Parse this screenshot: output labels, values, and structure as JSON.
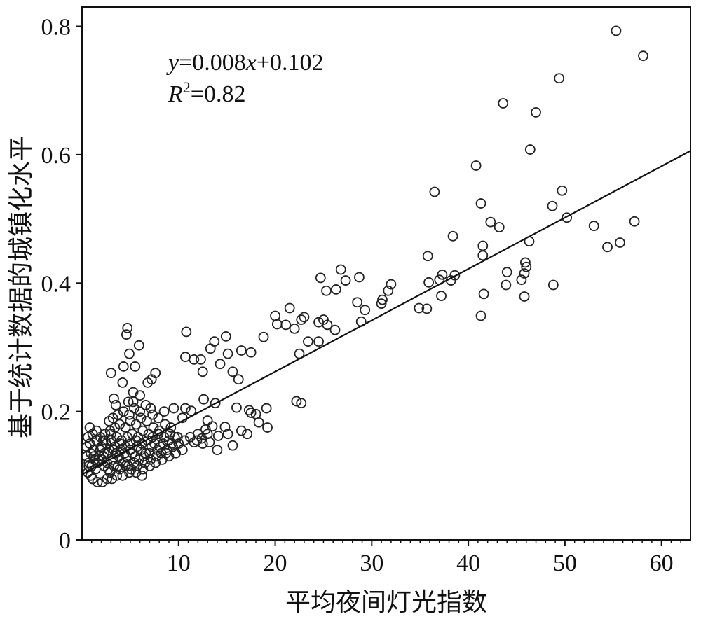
{
  "chart_data": {
    "type": "scatter",
    "xlabel": "平均夜间灯光指数",
    "ylabel": "基于统计数据的城镇化水平",
    "xlim": [
      0,
      63
    ],
    "ylim": [
      0,
      0.83
    ],
    "x_ticks": [
      "10",
      "20",
      "30",
      "40",
      "50",
      "60"
    ],
    "y_ticks": [
      "0",
      "0.2",
      "0.4",
      "0.6",
      "0.8"
    ],
    "grid": false,
    "legend": "none",
    "annotation": {
      "equation_y": "y",
      "equation_rest": "=0.008",
      "equation_x": "x",
      "equation_tail": "+0.102",
      "r2_base": "R",
      "r2_sup": "2",
      "r2_value": "=0.82"
    },
    "trendline": {
      "slope": 0.008,
      "intercept": 0.102,
      "x_range": [
        0,
        63
      ]
    },
    "points": [
      [
        55.3,
        0.793
      ],
      [
        58.1,
        0.754
      ],
      [
        49.4,
        0.719
      ],
      [
        43.6,
        0.68
      ],
      [
        47.0,
        0.666
      ],
      [
        46.4,
        0.608
      ],
      [
        40.8,
        0.583
      ],
      [
        36.5,
        0.542
      ],
      [
        49.7,
        0.544
      ],
      [
        41.3,
        0.524
      ],
      [
        48.7,
        0.52
      ],
      [
        50.2,
        0.502
      ],
      [
        42.3,
        0.495
      ],
      [
        43.2,
        0.487
      ],
      [
        53.0,
        0.489
      ],
      [
        57.2,
        0.496
      ],
      [
        38.4,
        0.473
      ],
      [
        46.3,
        0.465
      ],
      [
        55.7,
        0.463
      ],
      [
        54.4,
        0.456
      ],
      [
        41.5,
        0.458
      ],
      [
        41.5,
        0.443
      ],
      [
        35.8,
        0.442
      ],
      [
        45.9,
        0.432
      ],
      [
        37.3,
        0.413
      ],
      [
        38.6,
        0.412
      ],
      [
        44.0,
        0.417
      ],
      [
        46.0,
        0.425
      ],
      [
        45.8,
        0.415
      ],
      [
        45.5,
        0.405
      ],
      [
        37.0,
        0.405
      ],
      [
        38.2,
        0.404
      ],
      [
        35.9,
        0.401
      ],
      [
        27.3,
        0.404
      ],
      [
        26.8,
        0.421
      ],
      [
        28.7,
        0.409
      ],
      [
        24.7,
        0.408
      ],
      [
        32.0,
        0.398
      ],
      [
        31.7,
        0.388
      ],
      [
        25.3,
        0.388
      ],
      [
        26.3,
        0.39
      ],
      [
        31.1,
        0.374
      ],
      [
        31.0,
        0.368
      ],
      [
        37.2,
        0.38
      ],
      [
        43.9,
        0.397
      ],
      [
        48.8,
        0.397
      ],
      [
        41.6,
        0.383
      ],
      [
        45.8,
        0.379
      ],
      [
        28.5,
        0.37
      ],
      [
        29.3,
        0.358
      ],
      [
        34.9,
        0.361
      ],
      [
        35.7,
        0.36
      ],
      [
        41.3,
        0.349
      ],
      [
        21.5,
        0.361
      ],
      [
        20.0,
        0.349
      ],
      [
        23.0,
        0.347
      ],
      [
        22.7,
        0.343
      ],
      [
        24.5,
        0.339
      ],
      [
        25.0,
        0.343
      ],
      [
        25.4,
        0.335
      ],
      [
        28.9,
        0.34
      ],
      [
        26.2,
        0.327
      ],
      [
        20.2,
        0.336
      ],
      [
        21.1,
        0.335
      ],
      [
        22.0,
        0.329
      ],
      [
        23.4,
        0.309
      ],
      [
        24.5,
        0.309
      ],
      [
        22.5,
        0.29
      ],
      [
        18.8,
        0.316
      ],
      [
        16.5,
        0.295
      ],
      [
        17.5,
        0.292
      ],
      [
        14.9,
        0.317
      ],
      [
        13.7,
        0.309
      ],
      [
        15.1,
        0.29
      ],
      [
        13.3,
        0.298
      ],
      [
        10.8,
        0.324
      ],
      [
        10.7,
        0.285
      ],
      [
        11.6,
        0.281
      ],
      [
        12.3,
        0.281
      ],
      [
        12.5,
        0.262
      ],
      [
        14.3,
        0.274
      ],
      [
        15.6,
        0.262
      ],
      [
        16.2,
        0.25
      ],
      [
        22.2,
        0.216
      ],
      [
        22.7,
        0.213
      ],
      [
        19.1,
        0.205
      ],
      [
        17.3,
        0.202
      ],
      [
        16.0,
        0.206
      ],
      [
        18.0,
        0.196
      ],
      [
        17.5,
        0.198
      ],
      [
        18.3,
        0.183
      ],
      [
        19.2,
        0.175
      ],
      [
        16.5,
        0.17
      ],
      [
        17.1,
        0.165
      ],
      [
        14.8,
        0.176
      ],
      [
        15.1,
        0.165
      ],
      [
        13.5,
        0.177
      ],
      [
        14.1,
        0.162
      ],
      [
        12.8,
        0.172
      ],
      [
        13.2,
        0.152
      ],
      [
        12.0,
        0.165
      ],
      [
        11.6,
        0.152
      ],
      [
        15.6,
        0.147
      ],
      [
        14.0,
        0.14
      ],
      [
        12.4,
        0.158
      ],
      [
        11.3,
        0.201
      ],
      [
        12.6,
        0.219
      ],
      [
        13.8,
        0.213
      ],
      [
        10.4,
        0.19
      ],
      [
        13.0,
        0.186
      ],
      [
        10.7,
        0.205
      ],
      [
        9.5,
        0.205
      ],
      [
        4.7,
        0.33
      ],
      [
        4.6,
        0.32
      ],
      [
        5.9,
        0.303
      ],
      [
        4.9,
        0.29
      ],
      [
        5.5,
        0.27
      ],
      [
        4.3,
        0.27
      ],
      [
        3.0,
        0.26
      ],
      [
        7.6,
        0.26
      ],
      [
        7.2,
        0.25
      ],
      [
        6.8,
        0.245
      ],
      [
        4.2,
        0.245
      ],
      [
        3.3,
        0.22
      ],
      [
        3.5,
        0.21
      ],
      [
        5.3,
        0.23
      ],
      [
        6.0,
        0.225
      ],
      [
        4.8,
        0.215
      ],
      [
        5.3,
        0.215
      ],
      [
        2.8,
        0.185
      ],
      [
        2.2,
        0.155
      ],
      [
        0.8,
        0.175
      ],
      [
        1.1,
        0.165
      ],
      [
        1.5,
        0.17
      ],
      [
        0.9,
        0.135
      ],
      [
        0.7,
        0.12
      ],
      [
        0.6,
        0.105
      ],
      [
        0.9,
        0.1
      ],
      [
        1.1,
        0.095
      ],
      [
        1.6,
        0.09
      ],
      [
        2.1,
        0.09
      ],
      [
        2.6,
        0.095
      ],
      [
        3.1,
        0.095
      ],
      [
        1.4,
        0.11
      ],
      [
        0.8,
        0.15
      ],
      [
        1.2,
        0.14
      ],
      [
        1.7,
        0.125
      ],
      [
        2.3,
        0.115
      ],
      [
        2.9,
        0.105
      ],
      [
        3.6,
        0.1
      ],
      [
        4.2,
        0.1
      ],
      [
        4.9,
        0.105
      ],
      [
        5.6,
        0.105
      ],
      [
        6.3,
        0.11
      ],
      [
        7.0,
        0.115
      ],
      [
        7.6,
        0.12
      ],
      [
        8.3,
        0.125
      ],
      [
        9.0,
        0.13
      ],
      [
        9.7,
        0.135
      ],
      [
        10.4,
        0.14
      ],
      [
        2.2,
        0.13
      ],
      [
        2.7,
        0.135
      ],
      [
        3.3,
        0.14
      ],
      [
        3.8,
        0.13
      ],
      [
        4.4,
        0.135
      ],
      [
        5.0,
        0.14
      ],
      [
        5.5,
        0.13
      ],
      [
        6.1,
        0.14
      ],
      [
        6.6,
        0.135
      ],
      [
        7.2,
        0.145
      ],
      [
        7.8,
        0.14
      ],
      [
        8.4,
        0.15
      ],
      [
        9.0,
        0.155
      ],
      [
        9.6,
        0.16
      ],
      [
        2.0,
        0.145
      ],
      [
        2.5,
        0.15
      ],
      [
        3.0,
        0.155
      ],
      [
        3.6,
        0.16
      ],
      [
        4.1,
        0.155
      ],
      [
        4.7,
        0.16
      ],
      [
        5.2,
        0.165
      ],
      [
        5.8,
        0.16
      ],
      [
        6.3,
        0.17
      ],
      [
        6.9,
        0.165
      ],
      [
        7.4,
        0.175
      ],
      [
        8.0,
        0.17
      ],
      [
        8.6,
        0.18
      ],
      [
        9.2,
        0.175
      ],
      [
        1.5,
        0.155
      ],
      [
        1.9,
        0.16
      ],
      [
        2.4,
        0.165
      ],
      [
        2.9,
        0.17
      ],
      [
        3.4,
        0.175
      ],
      [
        3.9,
        0.18
      ],
      [
        4.5,
        0.175
      ],
      [
        5.0,
        0.185
      ],
      [
        5.6,
        0.18
      ],
      [
        6.1,
        0.19
      ],
      [
        6.7,
        0.185
      ],
      [
        7.3,
        0.195
      ],
      [
        7.9,
        0.19
      ],
      [
        8.5,
        0.2
      ],
      [
        3.2,
        0.19
      ],
      [
        3.7,
        0.195
      ],
      [
        4.3,
        0.2
      ],
      [
        4.9,
        0.195
      ],
      [
        5.4,
        0.205
      ],
      [
        6.0,
        0.2
      ],
      [
        6.6,
        0.21
      ],
      [
        7.1,
        0.205
      ],
      [
        2.6,
        0.12
      ],
      [
        3.2,
        0.125
      ],
      [
        3.7,
        0.115
      ],
      [
        4.3,
        0.12
      ],
      [
        4.8,
        0.115
      ],
      [
        5.4,
        0.12
      ],
      [
        5.9,
        0.125
      ],
      [
        6.5,
        0.12
      ],
      [
        7.1,
        0.125
      ],
      [
        7.7,
        0.13
      ],
      [
        8.2,
        0.135
      ],
      [
        8.8,
        0.14
      ],
      [
        9.4,
        0.145
      ],
      [
        10.0,
        0.15
      ],
      [
        1.3,
        0.125
      ],
      [
        1.8,
        0.13
      ],
      [
        2.3,
        0.135
      ],
      [
        2.8,
        0.14
      ],
      [
        3.4,
        0.145
      ],
      [
        3.9,
        0.15
      ],
      [
        4.5,
        0.145
      ],
      [
        5.0,
        0.15
      ],
      [
        5.6,
        0.155
      ],
      [
        6.2,
        0.15
      ],
      [
        6.8,
        0.155
      ],
      [
        7.3,
        0.16
      ],
      [
        7.9,
        0.165
      ],
      [
        8.5,
        0.16
      ],
      [
        9.1,
        0.165
      ],
      [
        1.0,
        0.115
      ],
      [
        1.6,
        0.12
      ],
      [
        2.1,
        0.125
      ],
      [
        2.7,
        0.11
      ],
      [
        3.3,
        0.115
      ],
      [
        3.9,
        0.11
      ],
      [
        4.5,
        0.115
      ],
      [
        5.1,
        0.11
      ],
      [
        5.7,
        0.115
      ],
      [
        6.2,
        0.1
      ],
      [
        0.5,
        0.13
      ],
      [
        0.5,
        0.145
      ],
      [
        0.6,
        0.16
      ],
      [
        0.7,
        0.115
      ],
      [
        1.2,
        0.13
      ],
      [
        1.9,
        0.14
      ],
      [
        2.4,
        0.155
      ],
      [
        3.0,
        0.165
      ],
      [
        3.5,
        0.135
      ],
      [
        4.0,
        0.14
      ],
      [
        4.6,
        0.13
      ],
      [
        5.2,
        0.135
      ],
      [
        5.7,
        0.145
      ],
      [
        6.4,
        0.13
      ],
      [
        7.0,
        0.135
      ],
      [
        7.5,
        0.15
      ],
      [
        8.1,
        0.145
      ],
      [
        8.7,
        0.135
      ],
      [
        9.3,
        0.15
      ],
      [
        9.9,
        0.16
      ],
      [
        10.6,
        0.155
      ],
      [
        11.2,
        0.16
      ],
      [
        11.9,
        0.155
      ],
      [
        12.5,
        0.15
      ],
      [
        13.0,
        0.165
      ]
    ]
  }
}
